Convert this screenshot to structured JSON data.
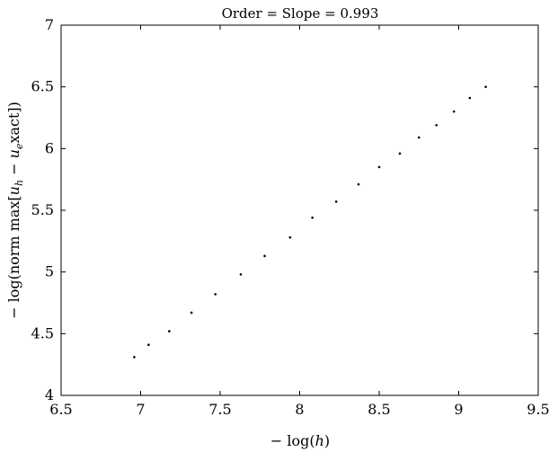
{
  "chart_data": {
    "type": "scatter",
    "title": "Order = Slope = 0.993",
    "xlabel": "− log(h)",
    "ylabel": "− log(norm max[u_h − u_e xact])",
    "xlim": [
      6.5,
      9.5
    ],
    "ylim": [
      4,
      7
    ],
    "xticks": [
      6.5,
      7,
      7.5,
      8,
      8.5,
      9,
      9.5
    ],
    "yticks": [
      4,
      4.5,
      5,
      5.5,
      6,
      6.5,
      7
    ],
    "xtick_labels": [
      "6.5",
      "7",
      "7.5",
      "8",
      "8.5",
      "9",
      "9.5"
    ],
    "ytick_labels": [
      "4",
      "4.5",
      "5",
      "5.5",
      "6",
      "6.5",
      "7"
    ],
    "grid": false,
    "series": [
      {
        "x": [
          6.96,
          7.05,
          7.18,
          7.32,
          7.47,
          7.63,
          7.78,
          7.94,
          8.08,
          8.23,
          8.37,
          8.5,
          8.63,
          8.75,
          8.86,
          8.97,
          9.07,
          9.17
        ],
        "y": [
          4.31,
          4.41,
          4.52,
          4.67,
          4.82,
          4.98,
          5.13,
          5.28,
          5.44,
          5.57,
          5.71,
          5.85,
          5.96,
          6.09,
          6.19,
          6.3,
          6.41,
          6.5
        ]
      }
    ]
  }
}
